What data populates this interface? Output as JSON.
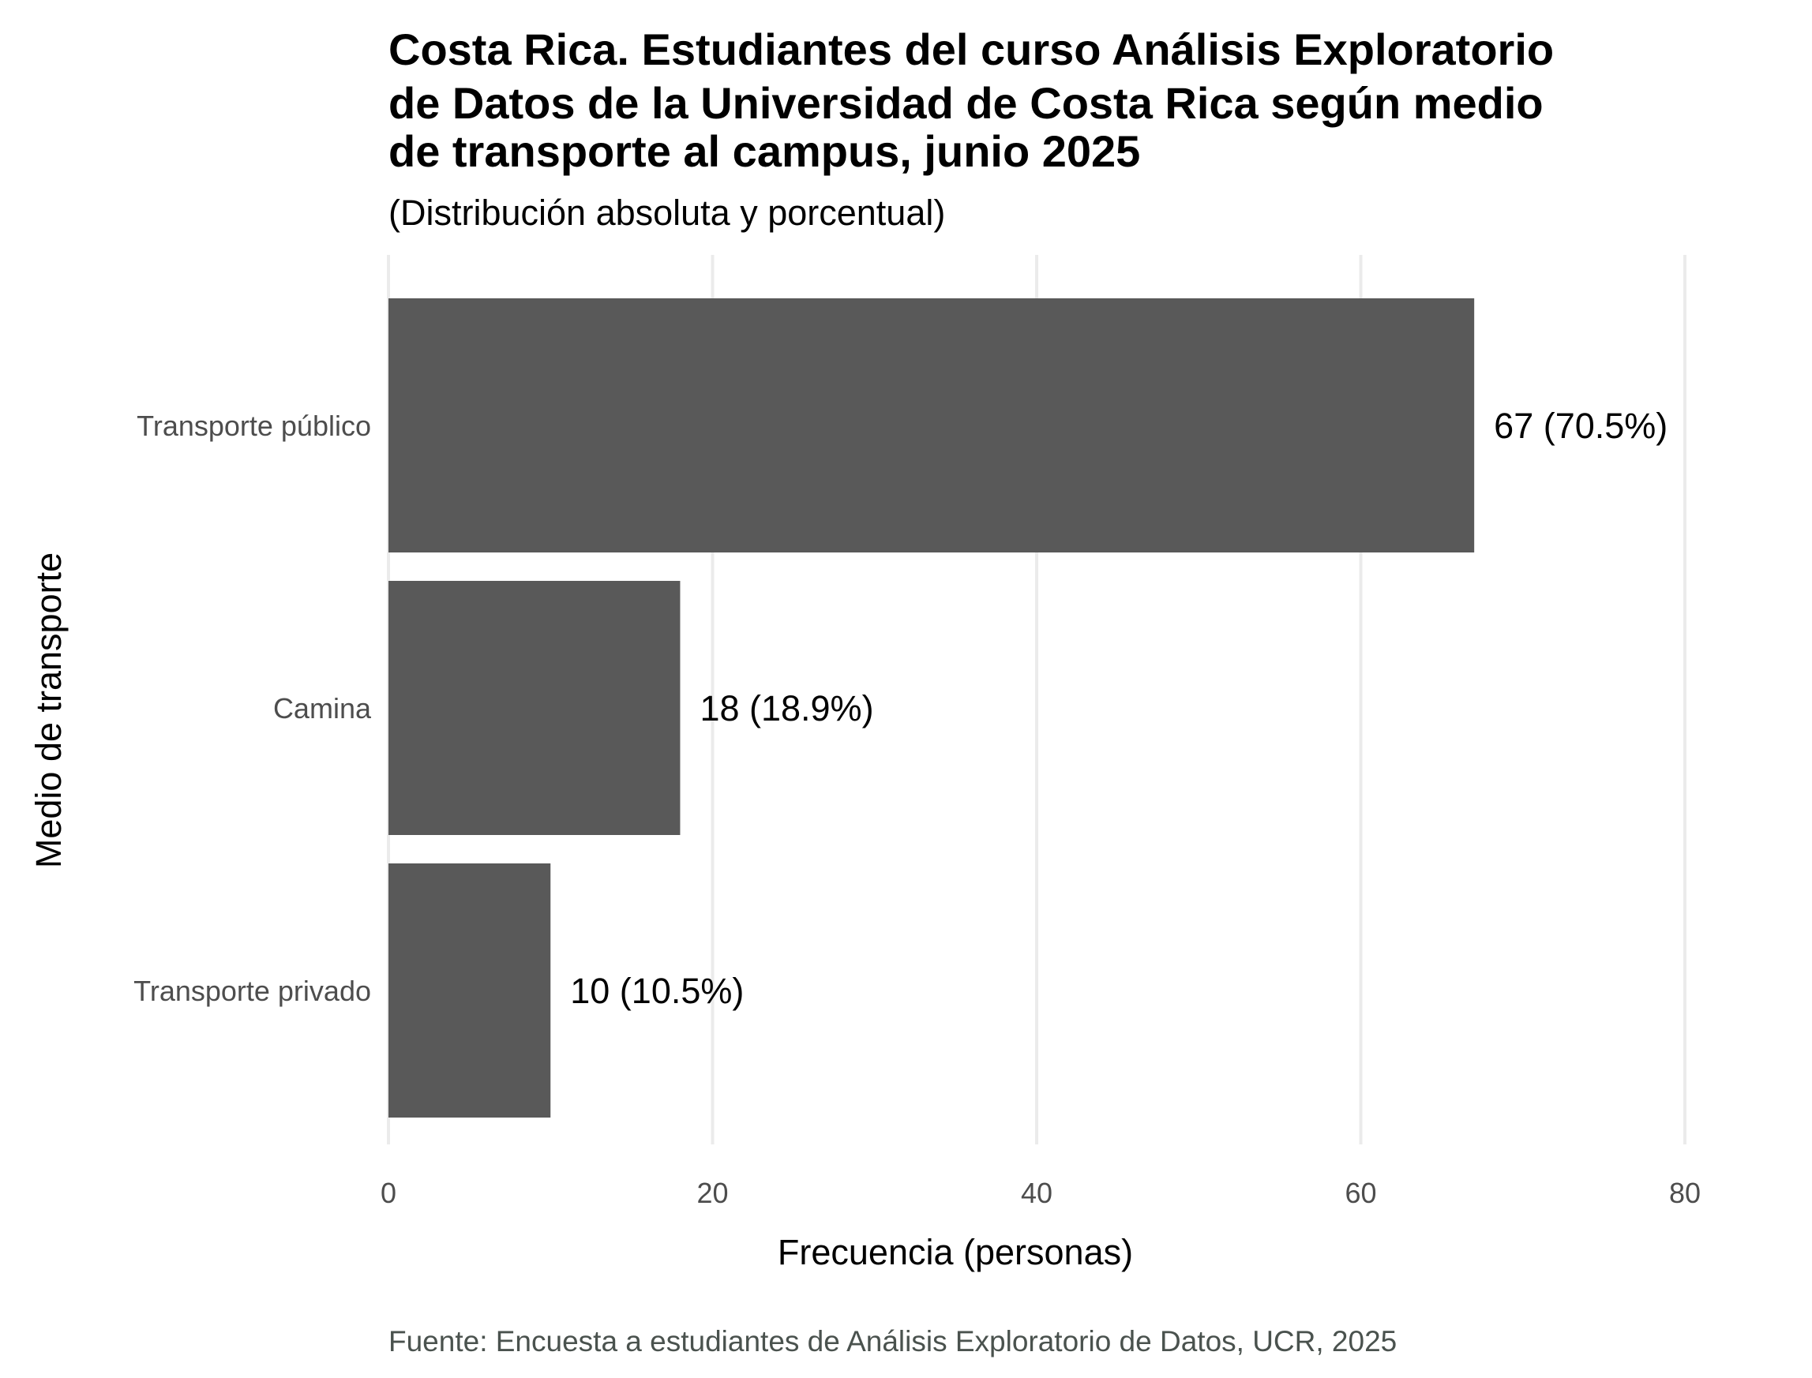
{
  "chart_data": {
    "type": "bar",
    "orientation": "horizontal",
    "title_lines": [
      "Costa Rica. Estudiantes del curso Análisis Exploratorio",
      "de Datos de la Universidad de Costa Rica según medio",
      "de transporte al campus, junio 2025"
    ],
    "subtitle": "(Distribución absoluta y porcentual)",
    "xlabel": "Frecuencia (personas)",
    "ylabel": "Medio de transporte",
    "categories": [
      "Transporte público",
      "Camina",
      "Transporte privado"
    ],
    "values": [
      67,
      18,
      10
    ],
    "data_labels": [
      "67 (70.5%)",
      "18 (18.9%)",
      "10 (10.5%)"
    ],
    "xlim": [
      0,
      80
    ],
    "x_ticks": [
      0,
      20,
      40,
      60,
      80
    ],
    "x_tick_labels": [
      "0",
      "20",
      "40",
      "60",
      "80"
    ],
    "grid": "vertical major",
    "legend": "none",
    "bar_color": "#595959",
    "caption": "Fuente: Encuesta a estudiantes de Análisis Exploratorio de Datos, UCR, 2025"
  }
}
